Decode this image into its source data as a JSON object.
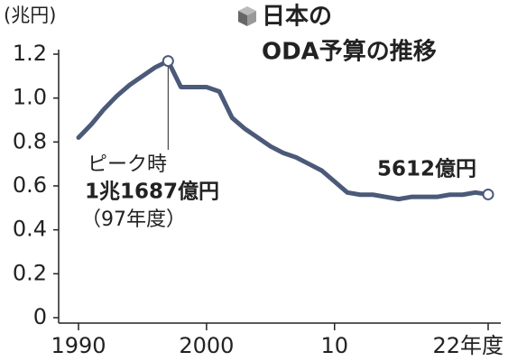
{
  "chart_data": {
    "type": "line",
    "title": [
      "日本の",
      "ODA予算の推移"
    ],
    "y_label": "(兆円)",
    "x": [
      1990,
      1991,
      1992,
      1993,
      1994,
      1995,
      1996,
      1997,
      1998,
      1999,
      2000,
      2001,
      2002,
      2003,
      2004,
      2005,
      2006,
      2007,
      2008,
      2009,
      2010,
      2011,
      2012,
      2013,
      2014,
      2015,
      2016,
      2017,
      2018,
      2019,
      2020,
      2021,
      2022
    ],
    "values": [
      0.82,
      0.88,
      0.95,
      1.01,
      1.06,
      1.1,
      1.14,
      1.1687,
      1.05,
      1.05,
      1.05,
      1.03,
      0.91,
      0.86,
      0.82,
      0.78,
      0.75,
      0.73,
      0.7,
      0.67,
      0.62,
      0.57,
      0.56,
      0.56,
      0.55,
      0.54,
      0.55,
      0.55,
      0.55,
      0.56,
      0.56,
      0.57,
      0.5612
    ],
    "color": "#4b5a78",
    "xlim": [
      1990,
      2022
    ],
    "xticks": [
      1990,
      2000,
      {
        "value": 2010,
        "label": "10"
      },
      {
        "value": 2022,
        "label": "22年度"
      }
    ],
    "ylim": [
      0,
      1.2
    ],
    "yticks": [
      0,
      0.2,
      0.4,
      0.6,
      {
        "value": 0.8,
        "label": "0.8"
      },
      {
        "value": 1.0,
        "label": "1.0"
      },
      1.2
    ],
    "annotations": [
      "ピーク時",
      "1兆1687億円",
      "（97年度）",
      "5612億円"
    ]
  }
}
